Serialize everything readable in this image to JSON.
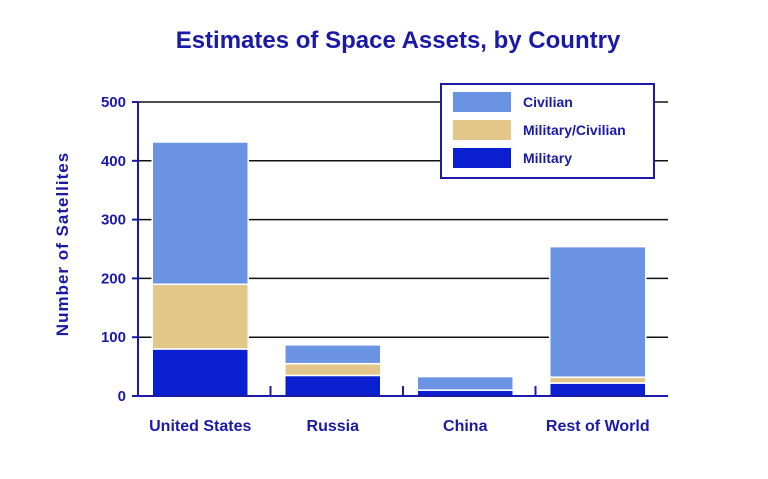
{
  "chart_data": {
    "type": "bar",
    "stacked": true,
    "title": "Estimates of Space Assets, by Country",
    "xlabel": "",
    "ylabel": "Number of Satellites",
    "ylim": [
      0,
      500
    ],
    "yticks": [
      0,
      100,
      200,
      300,
      400,
      500
    ],
    "grid": true,
    "legend_position": "top-right",
    "categories": [
      "United States",
      "Russia",
      "China",
      "Rest of World"
    ],
    "series": [
      {
        "name": "Military",
        "color": "#0a1fd0",
        "values": [
          80,
          35,
          10,
          22
        ]
      },
      {
        "name": "Military/Civilian",
        "color": "#e2c68a",
        "values": [
          110,
          20,
          0,
          10
        ]
      },
      {
        "name": "Civilian",
        "color": "#6b93e3",
        "values": [
          242,
          32,
          23,
          222
        ]
      }
    ],
    "legend_order": [
      "Civilian",
      "Military/Civilian",
      "Military"
    ]
  }
}
